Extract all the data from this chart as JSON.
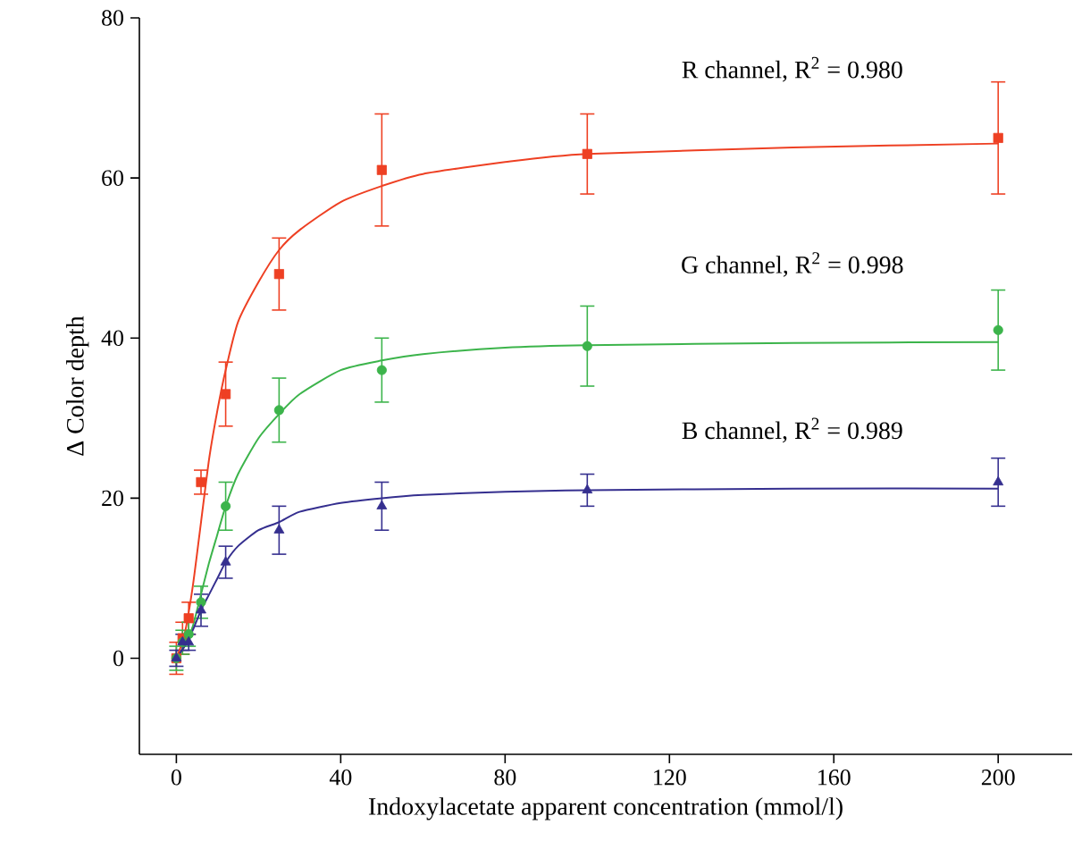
{
  "chart_data": {
    "type": "scatter",
    "xlabel": "Indoxylacetate apparent concentration (mmol/l)",
    "ylabel": "Δ Color depth",
    "xlim": [
      -9,
      218
    ],
    "xticks": [
      0,
      40,
      80,
      120,
      160,
      200
    ],
    "ylim": [
      -12,
      80
    ],
    "yticks": [
      0,
      20,
      40,
      60,
      80
    ],
    "series": [
      {
        "color": "#ee4023",
        "marker": "square",
        "x": [
          0,
          1.5,
          3,
          6,
          12,
          25,
          50,
          100,
          200
        ],
        "values": [
          0,
          2.5,
          5,
          22,
          33,
          48,
          61,
          63,
          65
        ],
        "errors": [
          2,
          2,
          2,
          1.5,
          4,
          4.5,
          7,
          5,
          7
        ]
      },
      {
        "color": "#3cb44b",
        "marker": "circle",
        "x": [
          0,
          1.5,
          3,
          6,
          12,
          25,
          50,
          100,
          200
        ],
        "values": [
          0,
          2,
          3,
          7,
          19,
          31,
          36,
          39,
          41
        ],
        "errors": [
          1.5,
          1.5,
          1.5,
          2,
          3,
          4,
          4,
          5,
          5
        ]
      },
      {
        "color": "#352f8f",
        "marker": "triangle",
        "x": [
          0,
          1.5,
          3,
          6,
          12,
          25,
          50,
          100,
          200
        ],
        "values": [
          0,
          2,
          2,
          6,
          12,
          16,
          19,
          21,
          22
        ],
        "errors": [
          1,
          1,
          1,
          2,
          2,
          3,
          3,
          2,
          3
        ]
      },
      {
        "type": "line",
        "color": "#ee4023",
        "marker": "none",
        "x": [
          0,
          2,
          4,
          6,
          8,
          10,
          12,
          15,
          20,
          25,
          30,
          40,
          50,
          60,
          80,
          100,
          150,
          200
        ],
        "values": [
          0,
          3,
          9,
          17,
          25,
          31,
          36,
          42,
          47,
          51,
          53.5,
          57,
          59,
          60.5,
          62,
          63,
          63.8,
          64.3
        ]
      },
      {
        "type": "line",
        "color": "#3cb44b",
        "marker": "none",
        "x": [
          0,
          2,
          4,
          6,
          8,
          10,
          12,
          15,
          20,
          25,
          30,
          40,
          50,
          60,
          80,
          100,
          150,
          200
        ],
        "values": [
          0,
          1.5,
          4,
          8,
          12,
          15.5,
          19,
          23,
          27.5,
          30.5,
          33,
          36,
          37.2,
          38,
          38.8,
          39.1,
          39.4,
          39.5
        ]
      },
      {
        "type": "line",
        "color": "#352f8f",
        "marker": "none",
        "x": [
          0,
          2,
          4,
          6,
          8,
          10,
          12,
          15,
          20,
          25,
          30,
          40,
          50,
          60,
          80,
          100,
          150,
          200
        ],
        "values": [
          0,
          1.5,
          3.5,
          6,
          8,
          10,
          12,
          14,
          16,
          17,
          18.3,
          19.4,
          20,
          20.4,
          20.8,
          21,
          21.2,
          21.2
        ]
      }
    ],
    "annotations": [
      "R channel, R$^{2}$ = 0.980",
      "G channel, R$^{2}$ = 0.998",
      "B channel, R$^{2}$ = 0.989"
    ]
  }
}
